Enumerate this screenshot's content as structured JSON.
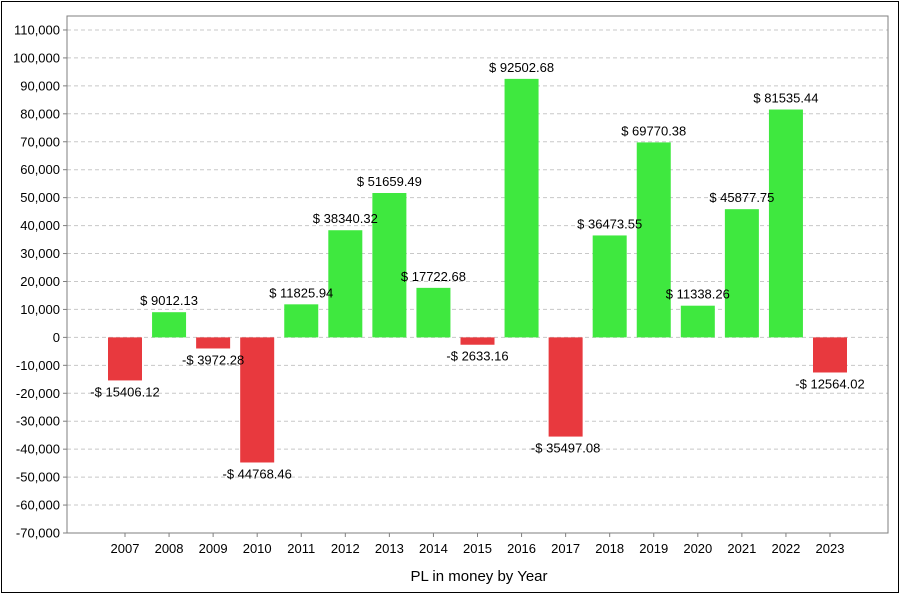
{
  "chart_data": {
    "type": "bar",
    "title": "",
    "xlabel": "PL in money by Year",
    "ylabel": "",
    "ylim": [
      -70000,
      115000
    ],
    "yticks": [
      110000,
      100000,
      90000,
      80000,
      70000,
      60000,
      50000,
      40000,
      30000,
      20000,
      10000,
      0,
      -10000,
      -20000,
      -30000,
      -40000,
      -50000,
      -60000,
      -70000
    ],
    "ytick_labels": [
      "110,000",
      "100,000",
      "90,000",
      "80,000",
      "70,000",
      "60,000",
      "50,000",
      "40,000",
      "30,000",
      "20,000",
      "10,000",
      "0",
      "-10,000",
      "-20,000",
      "-30,000",
      "-40,000",
      "-50,000",
      "-60,000",
      "-70,000"
    ],
    "grid": true,
    "categories": [
      "2007",
      "2008",
      "2009",
      "2010",
      "2011",
      "2012",
      "2013",
      "2014",
      "2015",
      "2016",
      "2017",
      "2018",
      "2019",
      "2020",
      "2021",
      "2022",
      "2023"
    ],
    "values": [
      -15406.12,
      9012.13,
      -3972.28,
      -44768.46,
      11825.94,
      38340.32,
      51659.49,
      17722.68,
      -2633.16,
      92502.68,
      -35497.08,
      36473.55,
      69770.38,
      11338.26,
      45877.75,
      81535.44,
      -12564.02
    ],
    "data_labels": [
      "-$ 15406.12",
      "$ 9012.13",
      "-$ 3972.28",
      "-$ 44768.46",
      "$ 11825.94",
      "$ 38340.32",
      "$ 51659.49",
      "$ 17722.68",
      "-$ 2633.16",
      "$ 92502.68",
      "-$ 35497.08",
      "$ 36473.55",
      "$ 69770.38",
      "$ 11338.26",
      "$ 45877.75",
      "$ 81535.44",
      "-$ 12564.02"
    ],
    "colors": {
      "positive": "#3fe83f",
      "negative": "#e8393e",
      "grid": "#c8c8c8",
      "axis": "#7f7f7f"
    }
  }
}
